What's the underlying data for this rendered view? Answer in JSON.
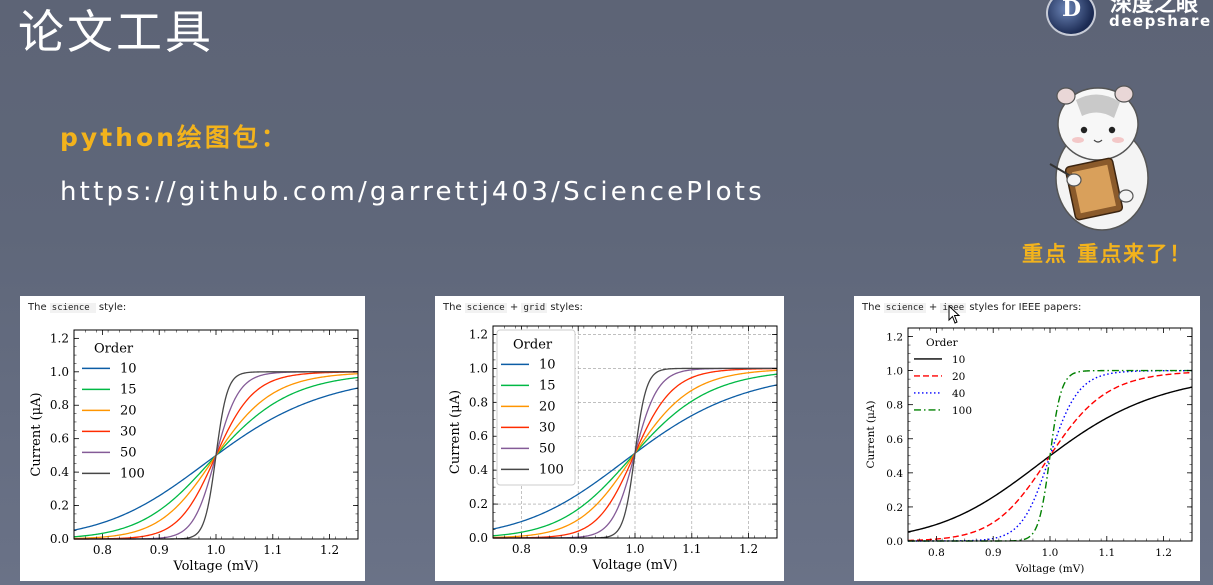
{
  "slide": {
    "title": "论文工具",
    "subtitle": "python绘图包：",
    "url": "https://github.com/garrettj403/SciencePlots",
    "emphasis": "重点   重点来了！",
    "brand_cn": "深度之眼",
    "brand_url": "deepshare.ne",
    "logo_letter": "D"
  },
  "panels": [
    {
      "caption_pre": "The ",
      "caption_code1": "science",
      "caption_mid": "",
      "caption_code2": "",
      "caption_post": " style:"
    },
    {
      "caption_pre": "The ",
      "caption_code1": "science",
      "caption_mid": " + ",
      "caption_code2": "grid",
      "caption_post": " styles:"
    },
    {
      "caption_pre": "The ",
      "caption_code1": "science",
      "caption_mid": " + ",
      "caption_code2": "ieee",
      "caption_post": " styles for IEEE papers:"
    }
  ],
  "chart_data": [
    {
      "type": "line",
      "style": "science",
      "xlabel": "Voltage (mV)",
      "ylabel": "Current (μA)",
      "xlim": [
        0.75,
        1.25
      ],
      "ylim": [
        0.0,
        1.25
      ],
      "xticks": [
        "0.8",
        "0.9",
        "1.0",
        "1.1",
        "1.2"
      ],
      "yticks": [
        "0.0",
        "0.2",
        "0.4",
        "0.6",
        "0.8",
        "1.0",
        "1.2"
      ],
      "grid": false,
      "legend_title": "Order",
      "legend_position": "top-left",
      "series": [
        {
          "name": "10",
          "order": 10,
          "color": "#0C5DA5",
          "dash": "solid"
        },
        {
          "name": "15",
          "order": 15,
          "color": "#00B945",
          "dash": "solid"
        },
        {
          "name": "20",
          "order": 20,
          "color": "#FF9500",
          "dash": "solid"
        },
        {
          "name": "30",
          "order": 30,
          "color": "#FF2C00",
          "dash": "solid"
        },
        {
          "name": "50",
          "order": 50,
          "color": "#845B97",
          "dash": "solid"
        },
        {
          "name": "100",
          "order": 100,
          "color": "#474747",
          "dash": "solid"
        }
      ]
    },
    {
      "type": "line",
      "style": "science + grid",
      "xlabel": "Voltage (mV)",
      "ylabel": "Current (μA)",
      "xlim": [
        0.75,
        1.25
      ],
      "ylim": [
        0.0,
        1.25
      ],
      "xticks": [
        "0.8",
        "0.9",
        "1.0",
        "1.1",
        "1.2"
      ],
      "yticks": [
        "0.0",
        "0.2",
        "0.4",
        "0.6",
        "0.8",
        "1.0",
        "1.2"
      ],
      "grid": true,
      "legend_title": "Order",
      "legend_position": "top-left",
      "series": [
        {
          "name": "10",
          "order": 10,
          "color": "#0C5DA5",
          "dash": "solid"
        },
        {
          "name": "15",
          "order": 15,
          "color": "#00B945",
          "dash": "solid"
        },
        {
          "name": "20",
          "order": 20,
          "color": "#FF9500",
          "dash": "solid"
        },
        {
          "name": "30",
          "order": 30,
          "color": "#FF2C00",
          "dash": "solid"
        },
        {
          "name": "50",
          "order": 50,
          "color": "#845B97",
          "dash": "solid"
        },
        {
          "name": "100",
          "order": 100,
          "color": "#474747",
          "dash": "solid"
        }
      ]
    },
    {
      "type": "line",
      "style": "science + ieee",
      "xlabel": "Voltage (mV)",
      "ylabel": "Current (μA)",
      "xlim": [
        0.75,
        1.25
      ],
      "ylim": [
        0.0,
        1.25
      ],
      "xticks": [
        "0.8",
        "0.9",
        "1.0",
        "1.1",
        "1.2"
      ],
      "yticks": [
        "0.0",
        "0.2",
        "0.4",
        "0.6",
        "0.8",
        "1.0",
        "1.2"
      ],
      "grid": false,
      "legend_title": "Order",
      "legend_position": "top-left",
      "series": [
        {
          "name": "10",
          "order": 10,
          "color": "#000000",
          "dash": "solid"
        },
        {
          "name": "20",
          "order": 20,
          "color": "#FF0000",
          "dash": "dashed"
        },
        {
          "name": "40",
          "order": 40,
          "color": "#0000FF",
          "dash": "dotted"
        },
        {
          "name": "100",
          "order": 100,
          "color": "#008000",
          "dash": "dashdot"
        }
      ]
    }
  ]
}
